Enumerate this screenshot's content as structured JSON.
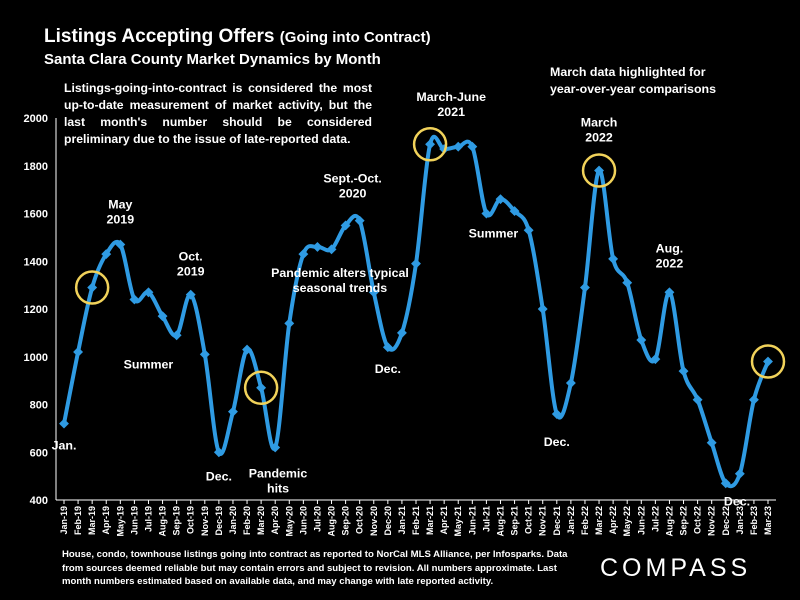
{
  "header": {
    "title": "Listings Accepting Offers",
    "title_paren": "(Going into Contract)",
    "subtitle": "Santa Clara County Market Dynamics by Month"
  },
  "note": "Listings-going-into-contract is considered the most up-to-date measurement of market activity, but the last month's number should be considered preliminary due to the issue of late-reported data.",
  "march_note": [
    "March data highlighted for",
    "year-over-year comparisons"
  ],
  "footer": "House, condo, townhouse listings going into contract as reported to NorCal MLS Alliance, per Infosparks. Data from sources deemed reliable but may contain errors and subject to revision. All numbers approximate. Last month numbers estimated based on available data, and may change with late reported activity.",
  "logo": "COMPASS",
  "colors": {
    "line": "#2f9be3",
    "highlight": "#f1d25a",
    "background": "#000000"
  },
  "chart_data": {
    "type": "line",
    "x": [
      "Jan-19",
      "Feb-19",
      "Mar-19",
      "Apr-19",
      "May-19",
      "Jun-19",
      "Jul-19",
      "Aug-19",
      "Sep-19",
      "Oct-19",
      "Nov-19",
      "Dec-19",
      "Jan-20",
      "Feb-20",
      "Mar-20",
      "Apr-20",
      "May-20",
      "Jun-20",
      "Jul-20",
      "Aug-20",
      "Sep-20",
      "Oct-20",
      "Nov-20",
      "Dec-20",
      "Jan-21",
      "Feb-21",
      "Mar-21",
      "Apr-21",
      "May-21",
      "Jun-21",
      "Jul-21",
      "Aug-21",
      "Sep-21",
      "Oct-21",
      "Nov-21",
      "Dec-21",
      "Jan-22",
      "Feb-22",
      "Mar-22",
      "Apr-22",
      "May-22",
      "Jun-22",
      "Jul-22",
      "Aug-22",
      "Sep-22",
      "Oct-22",
      "Nov-22",
      "Dec-22",
      "Jan-23",
      "Feb-23",
      "Mar-23"
    ],
    "values": [
      720,
      1020,
      1290,
      1430,
      1470,
      1240,
      1270,
      1170,
      1090,
      1260,
      1010,
      600,
      770,
      1030,
      870,
      620,
      1140,
      1430,
      1460,
      1450,
      1550,
      1570,
      1270,
      1040,
      1100,
      1390,
      1890,
      1870,
      1880,
      1880,
      1600,
      1660,
      1610,
      1530,
      1200,
      760,
      890,
      1290,
      1780,
      1410,
      1310,
      1070,
      990,
      1270,
      940,
      820,
      640,
      470,
      510,
      820,
      980
    ],
    "highlighted_months": [
      "Mar-19",
      "Mar-20",
      "Mar-21",
      "Mar-22",
      "Mar-23"
    ],
    "ylim": [
      400,
      2000
    ],
    "yticks": [
      400,
      600,
      800,
      1000,
      1200,
      1400,
      1600,
      1800,
      2000
    ],
    "grid": false,
    "annotations": [
      {
        "index": 0,
        "lines": [
          "Jan."
        ],
        "dy": 26
      },
      {
        "index": 4,
        "lines": [
          "May",
          "2019"
        ],
        "dy": -36
      },
      {
        "index": 9,
        "lines": [
          "Oct.",
          "2019"
        ],
        "dy": -34
      },
      {
        "index": 7,
        "lines": [
          "Summer"
        ],
        "dy": 0,
        "x_index": 6,
        "y_value": 950
      },
      {
        "index": 11,
        "lines": [
          "Dec."
        ],
        "dy": 28
      },
      {
        "index": 15,
        "lines": [
          "Pandemic",
          "hits"
        ],
        "dy": 30,
        "x_index": 15.2
      },
      {
        "index": 21,
        "lines": [
          "Sept.-Oct.",
          "2020"
        ],
        "dy": -38,
        "x_index": 20.5
      },
      {
        "index": 18,
        "lines": [
          "Pandemic alters typical",
          "seasonal trends"
        ],
        "dy": 0,
        "x_index": 19.6,
        "y_value": 1335
      },
      {
        "index": 23,
        "lines": [
          "Dec."
        ],
        "dy": 26
      },
      {
        "index": 27,
        "lines": [
          "March-June",
          "2021"
        ],
        "dy": -48,
        "x_index": 27.5
      },
      {
        "index": 31,
        "lines": [
          "Summer"
        ],
        "dy": 0,
        "x_index": 30.5,
        "y_value": 1500
      },
      {
        "index": 35,
        "lines": [
          "Dec."
        ],
        "dy": 32
      },
      {
        "index": 38,
        "lines": [
          "March",
          "2022"
        ],
        "dy": -44
      },
      {
        "index": 43,
        "lines": [
          "Aug.",
          "2022"
        ],
        "dy": -40
      },
      {
        "index": 47,
        "lines": [
          "Dec."
        ],
        "dy": 22,
        "x_index": 47.8
      }
    ]
  }
}
